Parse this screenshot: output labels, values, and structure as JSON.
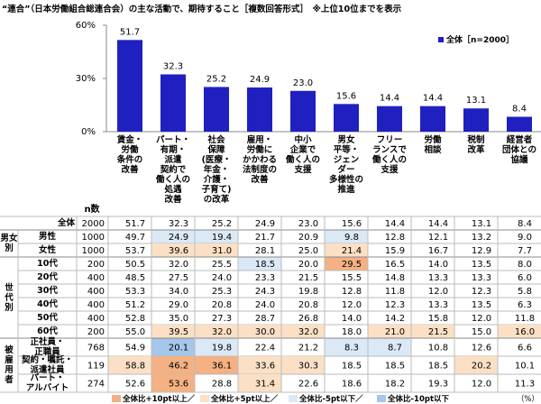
{
  "title": "“連合”（日本労働組合総連合会）の主な活動で、期待すること［複数回答形式］　※上位10位までを表示",
  "chart_data": {
    "type": "bar",
    "categories": [
      "賃金・\n労働\n条件の\n改善",
      "パート・\n有期・\n派遣\n契約で\n働く人の\n処遇\n改善",
      "社会\n保障\n(医療・\n年金・\n介護・\n子育て)\nの改革",
      "雇用・\n労働に\nかかわる\n法制度の\n改善",
      "中小\n企業で\n働く人の\n支援",
      "男女\n平等・\nジェン\nダー\n多様性の\n推進",
      "フリー\nランスで\n働く人の\n支援",
      "労働\n相談",
      "税制\n改革",
      "経営者\n団体との\n協議"
    ],
    "series": [
      {
        "name": "全体［n=2000］",
        "color": "#2020c0",
        "values": [
          51.7,
          32.3,
          25.2,
          24.9,
          23.0,
          15.6,
          14.4,
          14.4,
          13.1,
          8.4
        ],
        "value_labels": [
          "51.7",
          "32.3",
          "25.2",
          "24.9",
          "23.0",
          "15.6",
          "14.4",
          "14.4",
          "13.1",
          "8.4"
        ]
      }
    ],
    "ylim": [
      0,
      60
    ],
    "yticks": [
      {
        "value": 0,
        "label": "0%"
      },
      {
        "value": 30,
        "label": "30%"
      },
      {
        "value": 60,
        "label": "60%"
      }
    ],
    "legend": "upper right"
  },
  "table": {
    "n_header": "n数",
    "total": {
      "label": "全体",
      "n": 2000,
      "values": [
        "51.7",
        "32.3",
        "25.2",
        "24.9",
        "23.0",
        "15.6",
        "14.4",
        "14.4",
        "13.1",
        "8.4"
      ]
    },
    "groups": [
      {
        "label": "男女\n別",
        "rows": [
          {
            "label": "男性",
            "n": 1000,
            "values": [
              "49.7",
              "24.9",
              "19.4",
              "21.7",
              "20.9",
              "9.8",
              "12.8",
              "12.1",
              "13.2",
              "9.0"
            ]
          },
          {
            "label": "女性",
            "n": 1000,
            "values": [
              "53.7",
              "39.6",
              "31.0",
              "28.1",
              "25.0",
              "21.4",
              "15.9",
              "16.7",
              "12.9",
              "7.7"
            ]
          }
        ]
      },
      {
        "label": "世\n代\n別",
        "rows": [
          {
            "label": "10代",
            "n": 200,
            "values": [
              "50.5",
              "32.0",
              "25.5",
              "18.5",
              "20.0",
              "29.5",
              "16.5",
              "14.0",
              "13.5",
              "8.0"
            ]
          },
          {
            "label": "20代",
            "n": 400,
            "values": [
              "48.5",
              "27.5",
              "24.0",
              "23.3",
              "21.5",
              "15.5",
              "14.8",
              "13.3",
              "13.3",
              "6.0"
            ]
          },
          {
            "label": "30代",
            "n": 400,
            "values": [
              "53.3",
              "34.0",
              "25.3",
              "24.3",
              "19.8",
              "12.8",
              "11.8",
              "12.0",
              "12.3",
              "5.8"
            ]
          },
          {
            "label": "40代",
            "n": 400,
            "values": [
              "51.2",
              "29.0",
              "20.8",
              "24.0",
              "20.8",
              "12.0",
              "12.3",
              "13.3",
              "13.5",
              "6.3"
            ]
          },
          {
            "label": "50代",
            "n": 400,
            "values": [
              "52.8",
              "35.0",
              "27.3",
              "28.7",
              "26.8",
              "14.0",
              "14.2",
              "15.8",
              "12.0",
              "11.8"
            ]
          },
          {
            "label": "60代",
            "n": 200,
            "values": [
              "55.0",
              "39.5",
              "32.0",
              "30.0",
              "32.0",
              "18.0",
              "21.0",
              "21.5",
              "15.0",
              "16.0"
            ]
          }
        ]
      },
      {
        "label": "被\n雇\n用\n者",
        "rows": [
          {
            "label": "正社員・\n正職員",
            "n": 768,
            "values": [
              "54.9",
              "20.1",
              "19.8",
              "22.4",
              "21.2",
              "8.3",
              "8.7",
              "10.8",
              "12.6",
              "6.6"
            ]
          },
          {
            "label": "契約・嘱託・\n派遣社員",
            "n": 119,
            "values": [
              "58.8",
              "46.2",
              "36.1",
              "33.6",
              "30.3",
              "18.5",
              "18.5",
              "18.5",
              "20.2",
              "10.1"
            ]
          },
          {
            "label": "パート・\nアルバイト",
            "n": 274,
            "values": [
              "52.6",
              "53.6",
              "28.8",
              "31.4",
              "22.6",
              "18.6",
              "18.2",
              "19.3",
              "12.0",
              "11.3"
            ]
          }
        ]
      }
    ],
    "highlight": [
      {
        "label": "全体比+10pt以上／",
        "color": "#f4b183",
        "min": 10
      },
      {
        "label": "全体比+5pt以上／",
        "color": "#fbe0c6",
        "min": 5
      },
      {
        "label": "全体比-5pt以下／",
        "color": "#dbe9f7",
        "max": -5
      },
      {
        "label": "全体比-10pt以下",
        "color": "#a4c7ea",
        "max": -10
      }
    ],
    "unit": "（%）"
  }
}
